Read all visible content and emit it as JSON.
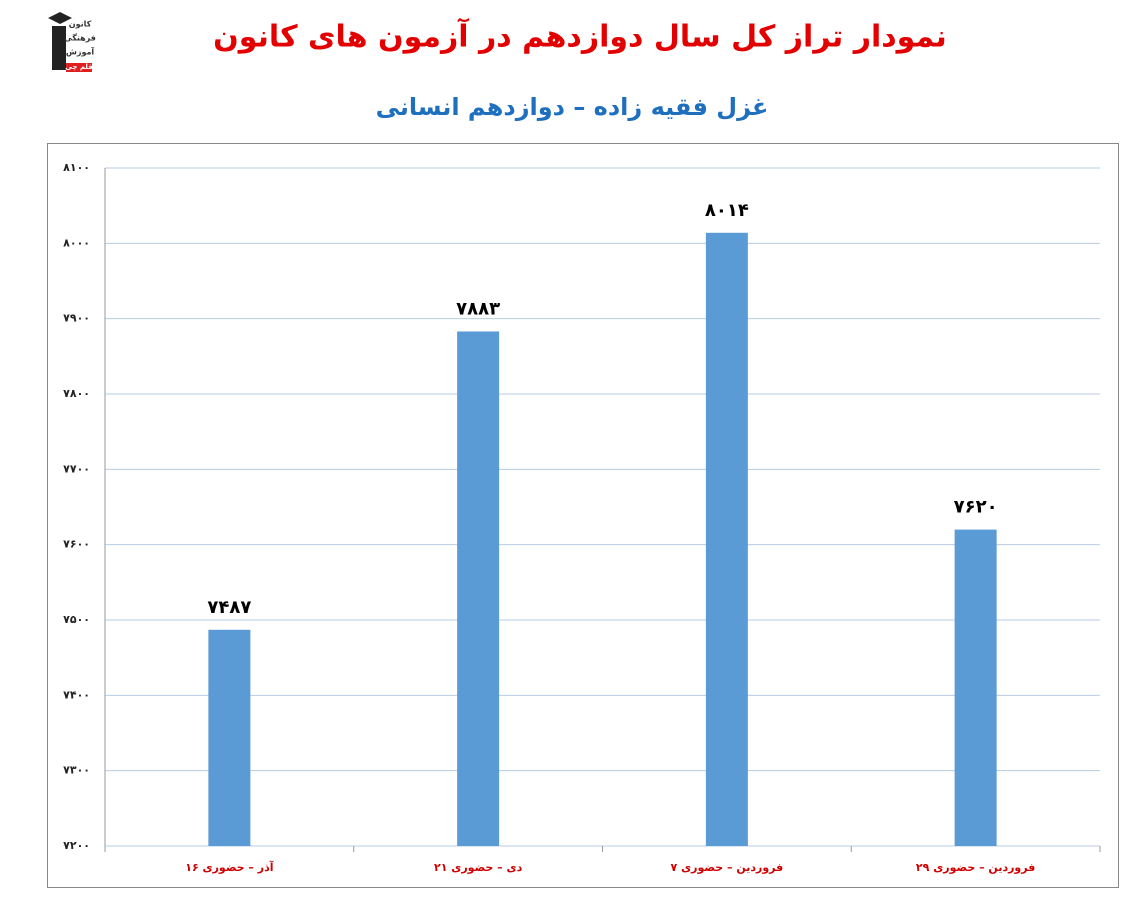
{
  "logo_text": [
    "کانون",
    "فرهنگی",
    "آموزش",
    "قلم چی"
  ],
  "chart_data": {
    "type": "bar",
    "title": "نمودار تراز کل سال دوازدهم در آزمون های کانون",
    "subtitle": "غزل فقیه زاده – دوازدهم انسانی",
    "categories": [
      "۱۶ آذر – حضوری",
      "۲۱ دی – حضوری",
      "۷ فروردین – حضوری",
      "۲۹ فروردین – حضوری"
    ],
    "values": [
      7487,
      7883,
      8014,
      7620
    ],
    "value_labels": [
      "۷۴۸۷",
      "۷۸۸۳",
      "۸۰۱۴",
      "۷۶۲۰"
    ],
    "color": "#5b9bd5",
    "ylim": [
      7200,
      8100
    ],
    "yticks": [
      {
        "value": 7200,
        "label": "۷۲۰۰"
      },
      {
        "value": 7300,
        "label": "۷۳۰۰"
      },
      {
        "value": 7400,
        "label": "۷۴۰۰"
      },
      {
        "value": 7500,
        "label": "۷۵۰۰"
      },
      {
        "value": 7600,
        "label": "۷۶۰۰"
      },
      {
        "value": 7700,
        "label": "۷۷۰۰"
      },
      {
        "value": 7800,
        "label": "۷۸۰۰"
      },
      {
        "value": 7900,
        "label": "۷۹۰۰"
      },
      {
        "value": 8000,
        "label": "۸۰۰۰"
      },
      {
        "value": 8100,
        "label": "۸۱۰۰"
      }
    ],
    "grid": true
  }
}
